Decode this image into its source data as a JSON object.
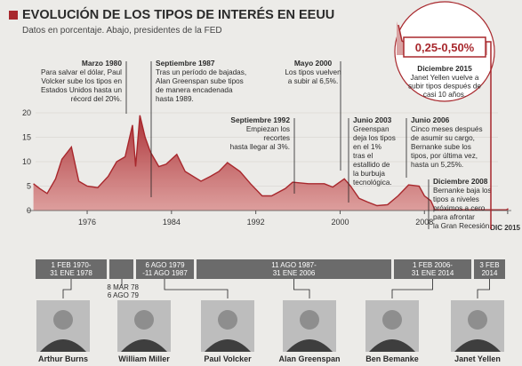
{
  "header": {
    "title": "EVOLUCIÓN DE LOS TIPOS DE INTERÉS EN EEUU",
    "subtitle": "Datos en porcentaje. Abajo, presidentes de la FED"
  },
  "chart_data": {
    "type": "area",
    "color": "#a8282d",
    "x": [
      1970.9,
      1971.5,
      1972.2,
      1973.0,
      1973.6,
      1974.5,
      1975.2,
      1976.0,
      1977.0,
      1978.0,
      1978.8,
      1979.6,
      1980.3,
      1980.6,
      1981.0,
      1981.5,
      1982.0,
      1982.8,
      1983.5,
      1984.5,
      1985.3,
      1986.8,
      1987.7,
      1988.5,
      1989.3,
      1990.5,
      1991.5,
      1992.6,
      1993.5,
      1994.8,
      1995.5,
      1997.0,
      1998.5,
      1999.3,
      2000.4,
      2001.0,
      2001.8,
      2002.6,
      2003.5,
      2004.5,
      2005.5,
      2006.5,
      2007.5,
      2008.0,
      2008.6,
      2009.0,
      2015.8,
      2015.95
    ],
    "values": [
      5.5,
      4.5,
      3.5,
      6.5,
      10.5,
      13,
      6,
      5,
      4.7,
      7,
      10,
      11,
      17.5,
      9,
      19.5,
      15,
      12,
      9,
      9.5,
      11.5,
      8,
      6,
      7,
      8,
      9.8,
      8,
      5.5,
      3,
      3,
      4.5,
      5.8,
      5.5,
      5.5,
      4.8,
      6.5,
      5,
      2.5,
      1.75,
      1,
      1.2,
      3,
      5.25,
      5,
      3,
      2,
      0.15,
      0.15,
      0.4
    ],
    "xlim": [
      1969.5,
      2016.5
    ],
    "ylim": [
      0,
      22
    ],
    "yticks": [
      0,
      5,
      10,
      15,
      20
    ],
    "xticks": [
      1976,
      1984,
      1992,
      2000,
      2008,
      {
        "value": 2015.9,
        "label": "DIC 2015"
      }
    ]
  },
  "annotations": [
    {
      "title": "Marzo 1980",
      "lines": [
        "Para salvar el dólar, Paul",
        "Volcker sube los tipos en",
        "Estados Unidos hasta un",
        "récord del 20%."
      ]
    },
    {
      "title": "Septiembre 1987",
      "lines": [
        "Tras un período de bajadas,",
        "Alan Greenspan sube tipos",
        "de manera encadenada",
        "hasta 1989."
      ]
    },
    {
      "title": "Mayo 2000",
      "lines": [
        "Los tipos vuelven",
        "a subir al 6,5%."
      ]
    },
    {
      "title": "Septiembre 1992",
      "lines": [
        "Empiezan los",
        "recortes",
        "hasta llegar al 3%."
      ]
    },
    {
      "title": "Junio 2003",
      "lines": [
        "Greenspan",
        "deja los tipos",
        "en el 1%",
        "tras el",
        "estallido de",
        "la burbuja",
        "tecnológica."
      ]
    },
    {
      "title": "Junio 2006",
      "lines": [
        "Cinco meses después",
        "de asumir su cargo,",
        "Bernanke sube los",
        "tipos, por última vez,",
        "hasta un 5,25%."
      ]
    },
    {
      "title": "Diciembre 2008",
      "lines": [
        "Bernanke baja los",
        "tipos a niveles",
        "próximos a cero",
        "para afrontar",
        "la Gran Recesión."
      ]
    }
  ],
  "callout": {
    "value": "0,25-0,50%",
    "title": "Diciembre 2015",
    "lines": [
      "Janet Yellen vuelve a",
      "subir tipos  después de",
      "casi 10 años."
    ]
  },
  "timeline": [
    {
      "lines": [
        "1 FEB 1970-",
        "31 ENE 1978"
      ]
    },
    {
      "lines": [
        "8 MAR 78",
        "6 AGO 79"
      ]
    },
    {
      "lines": [
        "6 AGO 1979",
        "-11 AGO 1987"
      ]
    },
    {
      "lines": [
        "11 AGO 1987-",
        "31 ENE 2006"
      ]
    },
    {
      "lines": [
        "1 FEB 2006-",
        "31 ENE 2014"
      ]
    },
    {
      "lines": [
        "3 FEB",
        "2014"
      ]
    }
  ],
  "presidents": [
    "Arthur Burns",
    "William Miller",
    "Paul Volcker",
    "Alan Greenspan",
    "Ben Bemanke",
    "Janet Yellen"
  ]
}
